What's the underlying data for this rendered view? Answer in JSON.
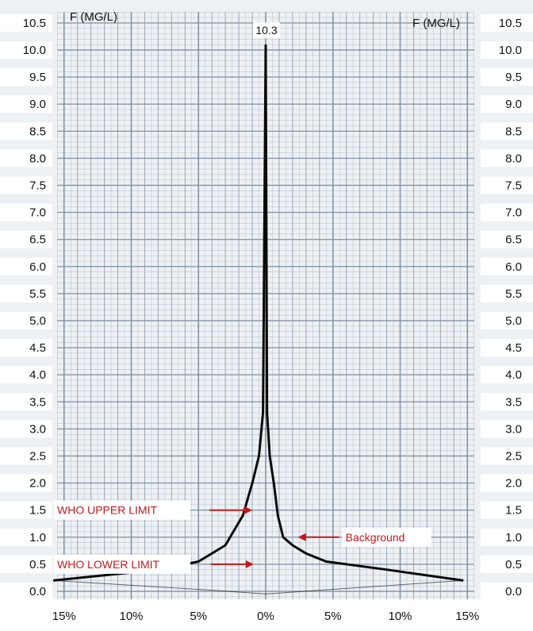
{
  "chart_data": {
    "type": "area",
    "title": "",
    "x_axis": {
      "ticks": [
        -15,
        -10,
        -5,
        0,
        5,
        10,
        15
      ],
      "tick_labels": [
        "15%",
        "10%",
        "5%",
        "0%",
        "5%",
        "10%",
        "15%"
      ],
      "range": [
        -15.5,
        15.5
      ]
    },
    "y_axis": {
      "unit_label_left": "F (MG/L)",
      "unit_label_right": "F (MG/L)",
      "ticks": [
        0.0,
        0.5,
        1.0,
        1.5,
        2.0,
        2.5,
        3.0,
        3.5,
        4.0,
        4.5,
        5.0,
        5.5,
        6.0,
        6.5,
        7.0,
        7.5,
        8.0,
        8.5,
        9.0,
        9.5,
        10.0,
        10.5
      ],
      "tick_labels": [
        "0.0",
        "0.5",
        "1.0",
        "1.5",
        "2.0",
        "2.5",
        "3.0",
        "3.5",
        "4.0",
        "4.5",
        "5.0",
        "5.5",
        "6.0",
        "6.5",
        "7.0",
        "7.5",
        "8.0",
        "8.5",
        "9.0",
        "9.5",
        "10.0",
        "10.5"
      ],
      "range": [
        -0.15,
        10.7
      ]
    },
    "grid": true,
    "peak_label": "10.3",
    "left_outline": [
      {
        "x": 0.0,
        "y": 10.1
      },
      {
        "x": -0.2,
        "y": 3.3
      },
      {
        "x": -0.5,
        "y": 2.5
      },
      {
        "x": -1.0,
        "y": 2.0
      },
      {
        "x": -1.7,
        "y": 1.4
      },
      {
        "x": -3.0,
        "y": 0.85
      },
      {
        "x": -5.0,
        "y": 0.55
      },
      {
        "x": -8.0,
        "y": 0.4
      },
      {
        "x": -15.8,
        "y": 0.2
      }
    ],
    "right_outline": [
      {
        "x": 0.0,
        "y": 10.1
      },
      {
        "x": 0.1,
        "y": 3.3
      },
      {
        "x": 0.3,
        "y": 2.5
      },
      {
        "x": 0.6,
        "y": 2.0
      },
      {
        "x": 0.9,
        "y": 1.4
      },
      {
        "x": 1.3,
        "y": 1.0
      },
      {
        "x": 2.0,
        "y": 0.85
      },
      {
        "x": 3.0,
        "y": 0.7
      },
      {
        "x": 4.5,
        "y": 0.55
      },
      {
        "x": 9.0,
        "y": 0.4
      },
      {
        "x": 14.7,
        "y": 0.2
      }
    ],
    "annotations": [
      {
        "text": "WHO UPPER LIMIT",
        "y": 1.5,
        "arrow_to_x": -1.0,
        "side": "left",
        "color": "#c0181e"
      },
      {
        "text": "WHO LOWER LIMIT",
        "y": 0.5,
        "arrow_to_x": -0.9,
        "side": "left",
        "color": "#c0181e"
      },
      {
        "text": "Background",
        "y": 1.0,
        "arrow_to_x": 2.4,
        "side": "right",
        "color": "#c0181e"
      }
    ],
    "colors": {
      "grid": "#7d8fa3",
      "paper": "#eef1f4",
      "line": "#0a0a0a",
      "annotation": "#c0181e"
    }
  }
}
